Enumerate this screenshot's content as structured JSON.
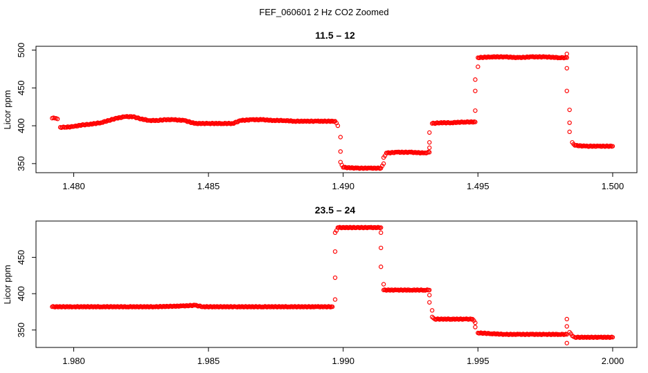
{
  "figure": {
    "title": "FEF_060601  2 Hz CO2 Zoomed"
  },
  "colors": {
    "points": "#ff0000",
    "axis": "#000000",
    "background": "#ffffff"
  },
  "chart_data": [
    {
      "type": "scatter",
      "title": "11.5 – 12",
      "xlabel": "",
      "ylabel": "Licor ppm",
      "xlim": [
        1.4786,
        1.5009
      ],
      "ylim": [
        338,
        505
      ],
      "xticks": [
        1.48,
        1.485,
        1.49,
        1.495,
        1.5
      ],
      "xtick_labels": [
        "1.480",
        "1.485",
        "1.490",
        "1.495",
        "1.500"
      ],
      "yticks": [
        350,
        400,
        450,
        500
      ],
      "ytick_labels": [
        "350",
        "400",
        "450",
        "500"
      ],
      "grid": false,
      "marker": "open-circle",
      "series": [
        {
          "x_start": 1.4792,
          "x_end": 1.5,
          "samples": [
            [
              1.4792,
              410
            ],
            [
              1.4793,
              410
            ],
            [
              1.4794,
              409
            ],
            [
              1.4795,
              398
            ],
            [
              1.4797,
              398
            ],
            [
              1.48,
              399
            ],
            [
              1.4803,
              401
            ],
            [
              1.4806,
              402
            ],
            [
              1.481,
              404
            ],
            [
              1.4813,
              407
            ],
            [
              1.4816,
              410
            ],
            [
              1.4819,
              412
            ],
            [
              1.4822,
              412
            ],
            [
              1.4825,
              409
            ],
            [
              1.4828,
              407
            ],
            [
              1.4831,
              407
            ],
            [
              1.4834,
              408
            ],
            [
              1.4837,
              408
            ],
            [
              1.4841,
              407
            ],
            [
              1.4845,
              403
            ],
            [
              1.485,
              403
            ],
            [
              1.4855,
              403
            ],
            [
              1.4859,
              403
            ],
            [
              1.4862,
              407
            ],
            [
              1.4866,
              408
            ],
            [
              1.487,
              408
            ],
            [
              1.4874,
              407
            ],
            [
              1.4878,
              407
            ],
            [
              1.4882,
              406
            ],
            [
              1.4886,
              406
            ],
            [
              1.489,
              406
            ],
            [
              1.4897,
              406
            ],
            [
              1.4898,
              400
            ],
            [
              1.4899,
              385
            ],
            [
              1.4899,
              366
            ],
            [
              1.4899,
              352
            ],
            [
              1.49,
              345
            ],
            [
              1.4905,
              344
            ],
            [
              1.491,
              344
            ],
            [
              1.4914,
              344
            ],
            [
              1.4915,
              350
            ],
            [
              1.4915,
              358
            ],
            [
              1.4916,
              364
            ],
            [
              1.492,
              365
            ],
            [
              1.4925,
              365
            ],
            [
              1.493,
              364
            ],
            [
              1.4932,
              365
            ],
            [
              1.4932,
              371
            ],
            [
              1.4932,
              378
            ],
            [
              1.4932,
              391
            ],
            [
              1.4933,
              403
            ],
            [
              1.4936,
              404
            ],
            [
              1.494,
              404
            ],
            [
              1.4945,
              405
            ],
            [
              1.4949,
              405
            ],
            [
              1.4949,
              420
            ],
            [
              1.4949,
              446
            ],
            [
              1.4949,
              461
            ],
            [
              1.495,
              478
            ],
            [
              1.495,
              490
            ],
            [
              1.4955,
              491
            ],
            [
              1.496,
              491
            ],
            [
              1.4965,
              490
            ],
            [
              1.497,
              491
            ],
            [
              1.4975,
              491
            ],
            [
              1.498,
              490
            ],
            [
              1.4983,
              490
            ],
            [
              1.4983,
              495
            ],
            [
              1.4983,
              476
            ],
            [
              1.4983,
              446
            ],
            [
              1.4984,
              421
            ],
            [
              1.4984,
              404
            ],
            [
              1.4984,
              392
            ],
            [
              1.4985,
              378
            ],
            [
              1.4986,
              374
            ],
            [
              1.499,
              373
            ],
            [
              1.4995,
              373
            ],
            [
              1.5,
              373
            ]
          ]
        }
      ]
    },
    {
      "type": "scatter",
      "title": "23.5 – 24",
      "xlabel": "",
      "ylabel": "Licor ppm",
      "xlim": [
        1.9786,
        2.0009
      ],
      "ylim": [
        326,
        500
      ],
      "xticks": [
        1.98,
        1.985,
        1.99,
        1.995,
        2.0
      ],
      "xtick_labels": [
        "1.980",
        "1.985",
        "1.990",
        "1.995",
        "2.000"
      ],
      "yticks": [
        350,
        400,
        450
      ],
      "ytick_labels": [
        "350",
        "400",
        "450"
      ],
      "grid": false,
      "marker": "open-circle",
      "series": [
        {
          "x_start": 1.9792,
          "x_end": 2.0,
          "samples": [
            [
              1.9792,
              382
            ],
            [
              1.98,
              382
            ],
            [
              1.981,
              382
            ],
            [
              1.982,
              382
            ],
            [
              1.983,
              382
            ],
            [
              1.984,
              383
            ],
            [
              1.9845,
              384
            ],
            [
              1.9848,
              382
            ],
            [
              1.986,
              382
            ],
            [
              1.987,
              382
            ],
            [
              1.988,
              382
            ],
            [
              1.989,
              382
            ],
            [
              1.9896,
              382
            ],
            [
              1.9897,
              392
            ],
            [
              1.9897,
              422
            ],
            [
              1.9897,
              458
            ],
            [
              1.9897,
              484
            ],
            [
              1.9898,
              491
            ],
            [
              1.9905,
              491
            ],
            [
              1.991,
              491
            ],
            [
              1.9914,
              491
            ],
            [
              1.9914,
              484
            ],
            [
              1.9914,
              463
            ],
            [
              1.9914,
              437
            ],
            [
              1.9915,
              413
            ],
            [
              1.9915,
              405
            ],
            [
              1.992,
              405
            ],
            [
              1.9925,
              405
            ],
            [
              1.993,
              405
            ],
            [
              1.9932,
              405
            ],
            [
              1.9932,
              398
            ],
            [
              1.9932,
              388
            ],
            [
              1.9933,
              377
            ],
            [
              1.9933,
              368
            ],
            [
              1.9934,
              365
            ],
            [
              1.994,
              365
            ],
            [
              1.9945,
              365
            ],
            [
              1.9948,
              365
            ],
            [
              1.9949,
              360
            ],
            [
              1.9949,
              354
            ],
            [
              1.995,
              346
            ],
            [
              1.9955,
              345
            ],
            [
              1.996,
              344
            ],
            [
              1.9965,
              344
            ],
            [
              1.997,
              344
            ],
            [
              1.9975,
              344
            ],
            [
              1.998,
              344
            ],
            [
              1.9983,
              344
            ],
            [
              1.9983,
              365
            ],
            [
              1.9983,
              355
            ],
            [
              1.9983,
              332
            ],
            [
              1.9984,
              347
            ],
            [
              1.9985,
              342
            ],
            [
              1.9986,
              340
            ],
            [
              1.999,
              340
            ],
            [
              1.9995,
              340
            ],
            [
              2.0,
              340
            ]
          ]
        }
      ]
    }
  ]
}
